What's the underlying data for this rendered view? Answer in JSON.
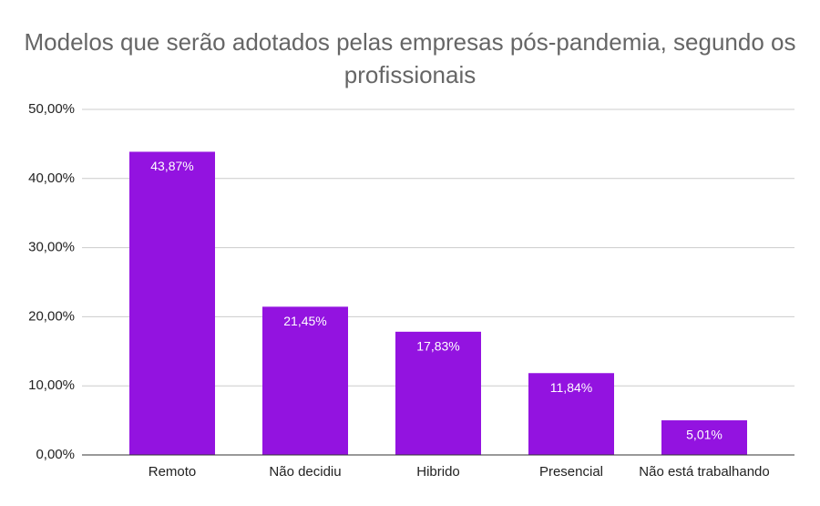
{
  "chart_data": {
    "type": "bar",
    "title": "Modelos que serão adotados pelas empresas pós-pandemia, segundo os profissionais",
    "categories": [
      "Remoto",
      "Não decidiu",
      "Hibrido",
      "Presencial",
      "Não está trabalhando"
    ],
    "values": [
      43.87,
      21.45,
      17.83,
      11.84,
      5.01
    ],
    "value_labels": [
      "43,87%",
      "21,45%",
      "17,83%",
      "11,84%",
      "5,01%"
    ],
    "color": "#9313e0",
    "ylim": [
      0,
      50
    ],
    "yticks": [
      {
        "value": 0,
        "label": "0,00%"
      },
      {
        "value": 10,
        "label": "10,00%"
      },
      {
        "value": 20,
        "label": "20,00%"
      },
      {
        "value": 30,
        "label": "30,00%"
      },
      {
        "value": 40,
        "label": "40,00%"
      },
      {
        "value": 50,
        "label": "50,00%"
      }
    ],
    "grid": true
  }
}
